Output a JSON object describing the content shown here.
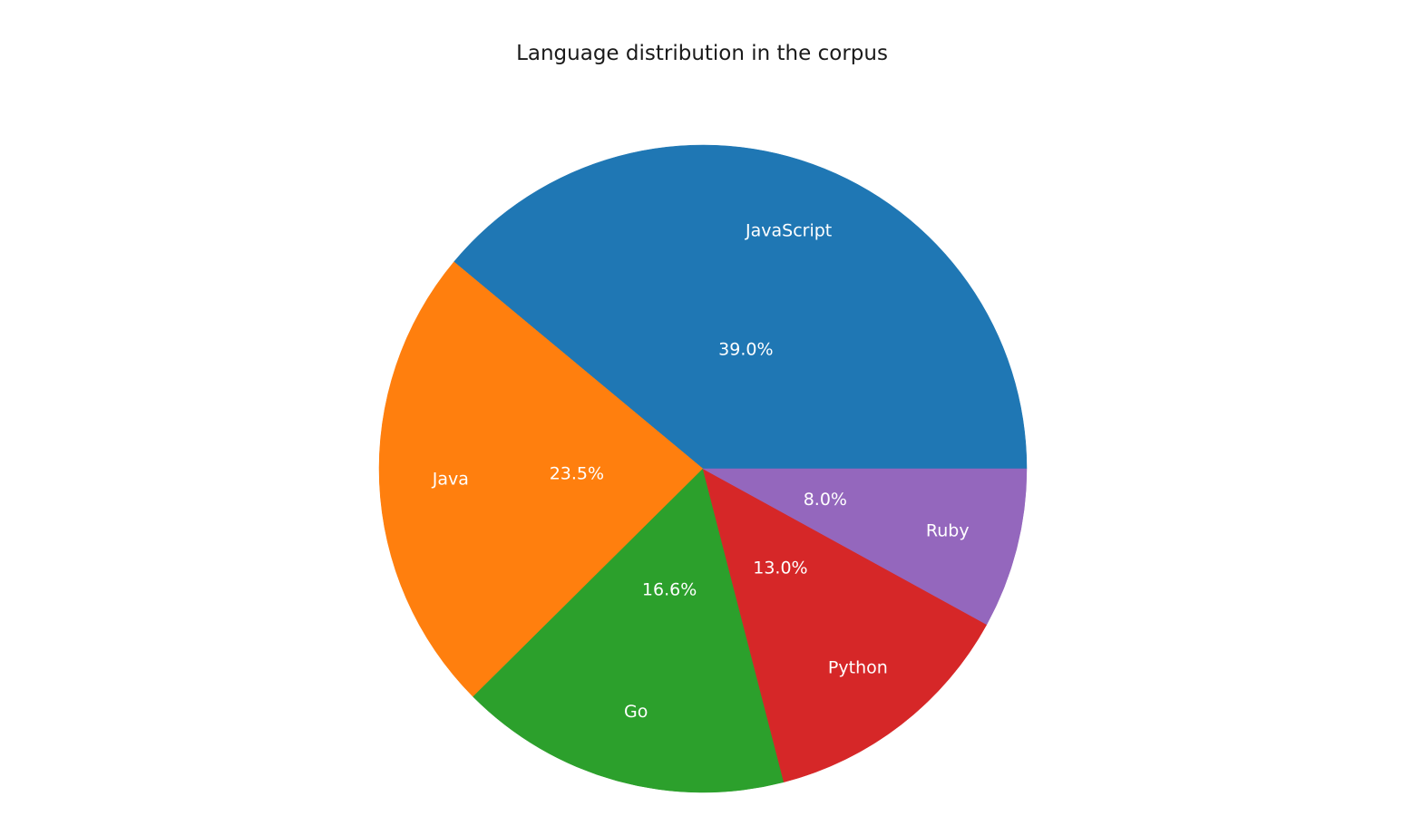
{
  "chart_data": {
    "type": "pie",
    "title": "Language distribution in the corpus",
    "start_angle_deg": 0,
    "direction": "counterclockwise",
    "slices": [
      {
        "label": "JavaScript",
        "value": 39.0,
        "pct_label": "39.0%",
        "color": "#1f77b4"
      },
      {
        "label": "Java",
        "value": 23.5,
        "pct_label": "23.5%",
        "color": "#ff7f0e"
      },
      {
        "label": "Go",
        "value": 16.6,
        "pct_label": "16.6%",
        "color": "#2ca02c"
      },
      {
        "label": "Python",
        "value": 13.0,
        "pct_label": "13.0%",
        "color": "#d62728"
      },
      {
        "label": "Ruby",
        "value": 8.0,
        "pct_label": "8.0%",
        "color": "#9467bd"
      }
    ]
  }
}
